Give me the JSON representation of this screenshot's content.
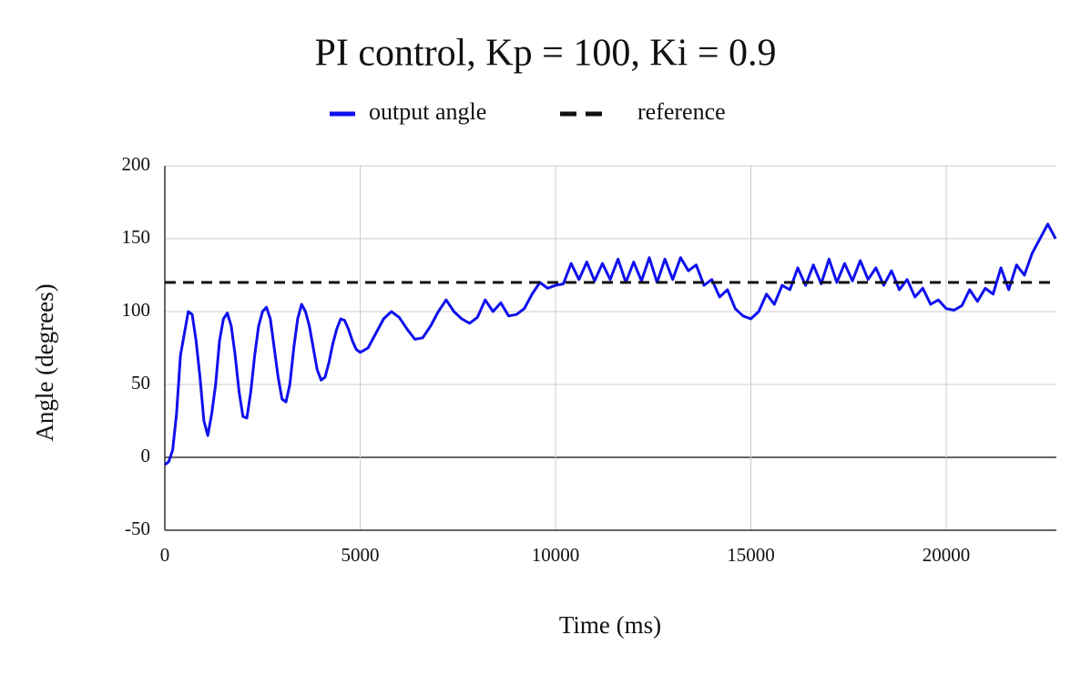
{
  "chart_data": {
    "type": "line",
    "title": "PI control, Kp = 100, Ki = 0.9",
    "x_label": "Time (ms)",
    "y_label": "Angle (degrees)",
    "xlim": [
      0,
      22820
    ],
    "xticks": [
      0,
      5000,
      10000,
      15000,
      20000
    ],
    "ylim": [
      -50,
      200
    ],
    "yticks": [
      -50,
      0,
      50,
      100,
      150,
      200
    ],
    "grid": true,
    "series": [
      {
        "name": "output angle",
        "color": "#1010ee",
        "dashed": false,
        "x": [
          0,
          100,
          200,
          300,
          400,
          500,
          600,
          700,
          800,
          900,
          1000,
          1100,
          1200,
          1300,
          1400,
          1500,
          1600,
          1700,
          1800,
          1900,
          2000,
          2100,
          2200,
          2300,
          2400,
          2500,
          2600,
          2700,
          2800,
          2900,
          3000,
          3100,
          3200,
          3300,
          3400,
          3500,
          3600,
          3700,
          3800,
          3900,
          4000,
          4100,
          4200,
          4300,
          4400,
          4500,
          4600,
          4700,
          4800,
          4900,
          5000,
          5200,
          5400,
          5600,
          5800,
          6000,
          6200,
          6400,
          6600,
          6800,
          7000,
          7200,
          7400,
          7600,
          7800,
          8000,
          8200,
          8400,
          8600,
          8800,
          9000,
          9200,
          9400,
          9600,
          9800,
          10000,
          10200,
          10400,
          10600,
          10800,
          11000,
          11200,
          11400,
          11600,
          11800,
          12000,
          12200,
          12400,
          12600,
          12800,
          13000,
          13200,
          13400,
          13600,
          13800,
          14000,
          14200,
          14400,
          14600,
          14800,
          15000,
          15200,
          15400,
          15600,
          15800,
          16000,
          16200,
          16400,
          16600,
          16800,
          17000,
          17200,
          17400,
          17600,
          17800,
          18000,
          18200,
          18400,
          18600,
          18800,
          19000,
          19200,
          19400,
          19600,
          19800,
          20000,
          20200,
          20400,
          20600,
          20800,
          21000,
          21200,
          21400,
          21600,
          21800,
          22000,
          22200,
          22400,
          22600,
          22800
        ],
        "values": [
          -5,
          -3,
          5,
          30,
          70,
          85,
          100,
          98,
          80,
          55,
          25,
          15,
          30,
          50,
          80,
          95,
          99,
          90,
          70,
          45,
          28,
          27,
          45,
          70,
          90,
          100,
          103,
          95,
          75,
          55,
          40,
          38,
          50,
          75,
          95,
          105,
          100,
          90,
          75,
          60,
          53,
          55,
          65,
          78,
          88,
          95,
          94,
          88,
          80,
          74,
          72,
          75,
          85,
          95,
          100,
          96,
          88,
          81,
          82,
          90,
          100,
          108,
          100,
          95,
          92,
          96,
          108,
          100,
          106,
          97,
          98,
          102,
          112,
          120,
          116,
          118,
          119,
          133,
          122,
          134,
          121,
          133,
          122,
          136,
          120,
          134,
          121,
          137,
          120,
          136,
          122,
          137,
          128,
          132,
          118,
          122,
          110,
          115,
          102,
          97,
          95,
          100,
          112,
          105,
          118,
          115,
          130,
          118,
          132,
          119,
          136,
          120,
          133,
          121,
          135,
          122,
          130,
          118,
          128,
          115,
          122,
          110,
          116,
          105,
          108,
          102,
          101,
          104,
          115,
          107,
          116,
          112,
          130,
          115,
          132,
          125,
          140,
          150,
          160,
          150
        ]
      },
      {
        "name": "reference",
        "color": "#111111",
        "dashed": true,
        "x": [
          0,
          22820
        ],
        "values": [
          120,
          120
        ]
      }
    ]
  }
}
